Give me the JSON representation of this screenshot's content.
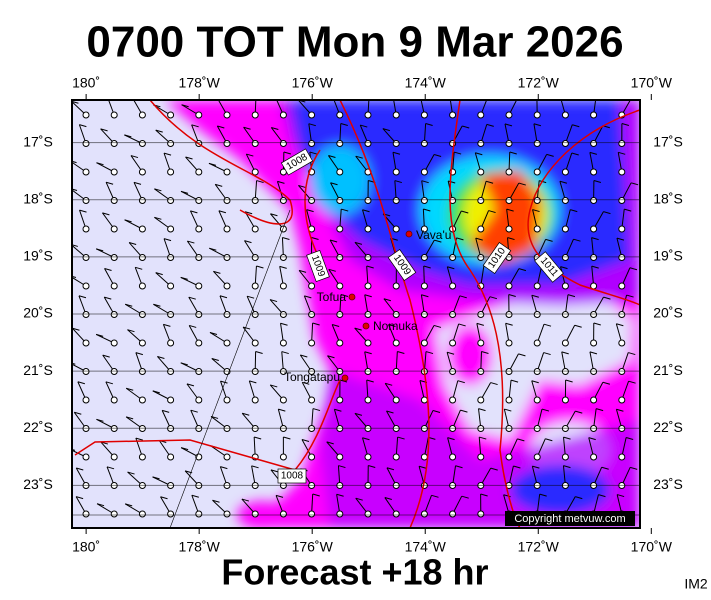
{
  "title": "0700 TOT Mon 9 Mar 2026",
  "footer": "Forecast +18 hr",
  "corner_label": "IM2",
  "copyright": "Copyright metvuw.com",
  "map": {
    "xlim": [
      -180.25,
      -170.2
    ],
    "ylim": [
      -23.75,
      -16.25
    ],
    "xticks": [
      {
        "value": -180,
        "label": "180˚"
      },
      {
        "value": -178,
        "label": "178˚W"
      },
      {
        "value": -176,
        "label": "176˚W"
      },
      {
        "value": -174,
        "label": "174˚W"
      },
      {
        "value": -172,
        "label": "172˚W"
      },
      {
        "value": -170,
        "label": "170˚W"
      }
    ],
    "yticks": [
      {
        "value": -17,
        "label": "17˚S"
      },
      {
        "value": -18,
        "label": "18˚S"
      },
      {
        "value": -19,
        "label": "19˚S"
      },
      {
        "value": -20,
        "label": "20˚S"
      },
      {
        "value": -21,
        "label": "21˚S"
      },
      {
        "value": -22,
        "label": "22˚S"
      },
      {
        "value": -23,
        "label": "23˚S"
      }
    ],
    "places": [
      "Vava'u",
      "Tofua",
      "Nomuka",
      "Tongatapu"
    ],
    "isobar_labels": [
      1008,
      1009,
      1009,
      1010,
      1011,
      1008
    ]
  }
}
